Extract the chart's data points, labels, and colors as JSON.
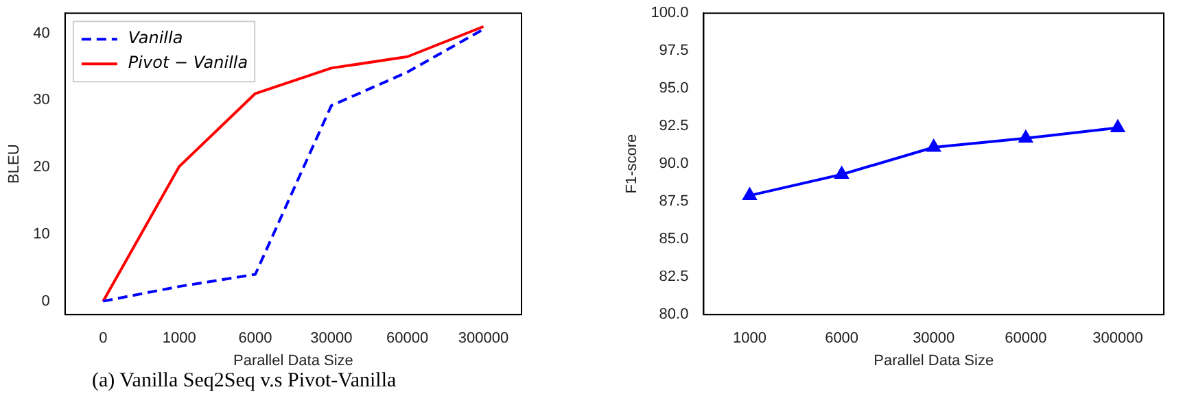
{
  "chart_data": [
    {
      "type": "line",
      "xlabel": "Parallel Data Size",
      "ylabel": "BLEU",
      "categories": [
        "0",
        "1000",
        "6000",
        "30000",
        "60000",
        "300000"
      ],
      "series": [
        {
          "name": "Vanilla",
          "color": "#0000ff",
          "line_style": "dashed",
          "values": [
            0,
            2.2,
            4,
            29.2,
            34.2,
            40.6
          ]
        },
        {
          "name": "Pivot − Vanilla",
          "color": "#ff0000",
          "line_style": "solid",
          "values": [
            0,
            20.1,
            31,
            34.8,
            36.5,
            41
          ]
        }
      ],
      "ylim": [
        -2,
        43
      ],
      "yticks": [
        0,
        10,
        20,
        30,
        40
      ],
      "grid": false,
      "legend": "top left",
      "marker": "none",
      "annotations": [
        "(a) Vanilla Seq2Seq v.s Pivot-Vanilla"
      ]
    },
    {
      "type": "line",
      "xlabel": "Parallel Data Size",
      "ylabel": "F1-score",
      "categories": [
        "1000",
        "6000",
        "30000",
        "60000",
        "300000"
      ],
      "series": [
        {
          "color": "#0000ff",
          "line_style": "solid",
          "values": [
            87.9,
            89.3,
            91.1,
            91.7,
            92.4
          ]
        }
      ],
      "ylim": [
        80,
        100
      ],
      "yticks": [
        {
          "value": 80,
          "label": "80.0"
        },
        {
          "value": 82.5,
          "label": "82.5"
        },
        {
          "value": 85,
          "label": "85.0"
        },
        {
          "value": 87.5,
          "label": "87.5"
        },
        {
          "value": 90,
          "label": "90.0"
        },
        {
          "value": 92.5,
          "label": "92.5"
        },
        {
          "value": 95,
          "label": "95.0"
        },
        {
          "value": 97.5,
          "label": "97.5"
        },
        {
          "value": 100,
          "label": "100.0"
        }
      ],
      "grid": false,
      "legend": false,
      "marker": "triangle"
    }
  ]
}
